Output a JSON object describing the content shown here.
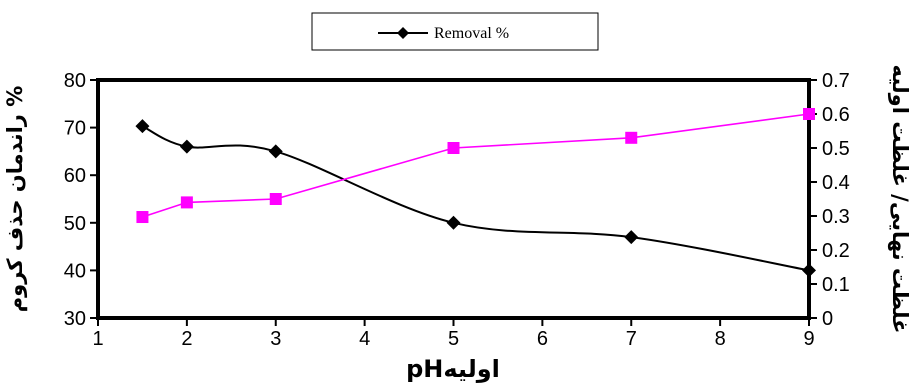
{
  "chart_data": {
    "type": "line",
    "legend": {
      "position": "top-center",
      "entries": [
        "Removal %"
      ]
    },
    "xlabel": "pHاولیه",
    "ylabel_left": "% راندمان حذف کروم",
    "ylabel_right": "غلظت نهایی/ غلظت اولیه",
    "xlim": [
      1,
      9
    ],
    "ylim_left": [
      30,
      80
    ],
    "ylim_right": [
      0,
      0.7
    ],
    "x_ticks": [
      "1",
      "2",
      "3",
      "4",
      "5",
      "6",
      "7",
      "8",
      "9"
    ],
    "y_left_ticks": [
      "30",
      "40",
      "50",
      "60",
      "70",
      "80"
    ],
    "y_right_ticks": [
      "0",
      "0.1",
      "0.2",
      "0.3",
      "0.4",
      "0.5",
      "0.6",
      "0.7"
    ],
    "grid": false,
    "series": [
      {
        "name": "Removal %",
        "axis": "left",
        "marker": "diamond",
        "color": "#000000",
        "smooth": true,
        "x": [
          1.5,
          2,
          3,
          5,
          7,
          9
        ],
        "y": [
          70.3,
          66,
          65,
          50,
          47,
          40
        ]
      },
      {
        "axis": "right",
        "marker": "square",
        "color": "#ff00ff",
        "smooth": false,
        "x": [
          1.5,
          2,
          3,
          5,
          7,
          9
        ],
        "y": [
          0.297,
          0.34,
          0.35,
          0.5,
          0.53,
          0.6
        ]
      }
    ]
  }
}
